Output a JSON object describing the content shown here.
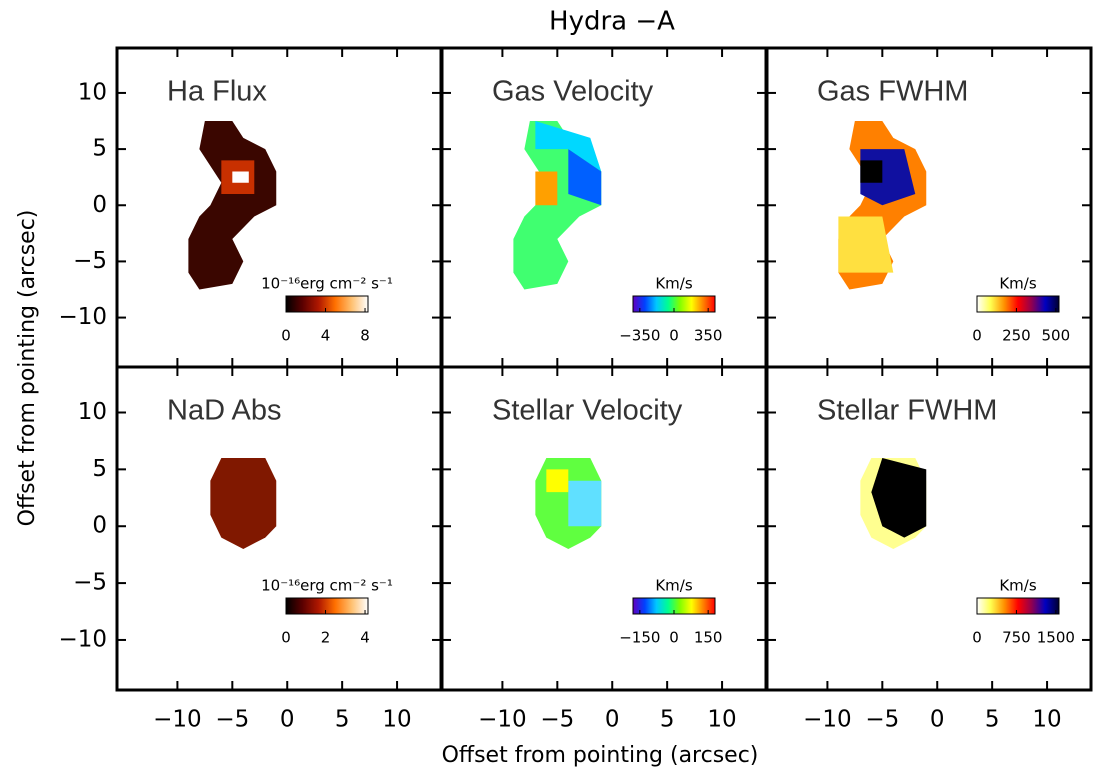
{
  "figure": {
    "title": "Hydra −A",
    "xlabel": "Offset from pointing (arcsec)",
    "ylabel": "Offset from pointing (arcsec)",
    "xlim": [
      -15.5,
      14
    ],
    "ylim": [
      -14.4,
      14
    ],
    "xticks": [
      {
        "value": -10,
        "label": "−10"
      },
      {
        "value": -5,
        "label": "−5"
      },
      0,
      5,
      10
    ],
    "yticks": [
      {
        "value": -10,
        "label": "−10"
      },
      {
        "value": -5,
        "label": "−5"
      },
      0,
      5,
      10
    ]
  },
  "chart_data": [
    {
      "type": "heatmap",
      "title": "Ha Flux",
      "colorbar": {
        "label": "10⁻¹⁶erg cm⁻² s⁻¹",
        "lim": [
          0,
          8.3
        ],
        "ticks": [
          0,
          4,
          8
        ],
        "colors": [
          "#000000",
          "#5a0000",
          "#b01800",
          "#ff7000",
          "#ffc070",
          "#ffffff"
        ]
      }
    },
    {
      "type": "heatmap",
      "title": "Gas Velocity",
      "colorbar": {
        "label": "Km/s",
        "lim": [
          -420,
          420
        ],
        "ticks": [
          {
            "value": -350,
            "label": "−350"
          },
          0,
          350
        ],
        "colors": [
          "#6000c0",
          "#0040ff",
          "#00c8ff",
          "#00ff90",
          "#80ff00",
          "#ffff00",
          "#ff8000",
          "#ff0000"
        ]
      }
    },
    {
      "type": "heatmap",
      "title": "Gas FWHM",
      "colorbar": {
        "label": "Km/s",
        "lim": [
          0,
          520
        ],
        "ticks": [
          0,
          250,
          500
        ],
        "colors": [
          "#ffffff",
          "#ffff50",
          "#ff9000",
          "#ff0000",
          "#900050",
          "#0000c0",
          "#000030"
        ]
      }
    },
    {
      "type": "heatmap",
      "title": "NaD Abs",
      "colorbar": {
        "label": "10⁻¹⁶erg cm⁻² s⁻¹",
        "lim": [
          0,
          4.15
        ],
        "ticks": [
          0,
          2,
          4
        ],
        "colors": [
          "#000000",
          "#5a0000",
          "#b01800",
          "#ff7000",
          "#ffc070",
          "#ffffff"
        ]
      }
    },
    {
      "type": "heatmap",
      "title": "Stellar Velocity",
      "colorbar": {
        "label": "Km/s",
        "lim": [
          -180,
          180
        ],
        "ticks": [
          {
            "value": -150,
            "label": "−150"
          },
          0,
          150
        ],
        "colors": [
          "#6000c0",
          "#0040ff",
          "#00c8ff",
          "#00ff90",
          "#80ff00",
          "#ffff00",
          "#ff8000",
          "#ff0000"
        ]
      }
    },
    {
      "type": "heatmap",
      "title": "Stellar FWHM",
      "colorbar": {
        "label": "Km/s",
        "lim": [
          0,
          1560
        ],
        "ticks": [
          0,
          750,
          1500
        ],
        "colors": [
          "#ffffff",
          "#ffff50",
          "#ff9000",
          "#ff0000",
          "#900050",
          "#0000c0",
          "#000030"
        ]
      }
    }
  ]
}
